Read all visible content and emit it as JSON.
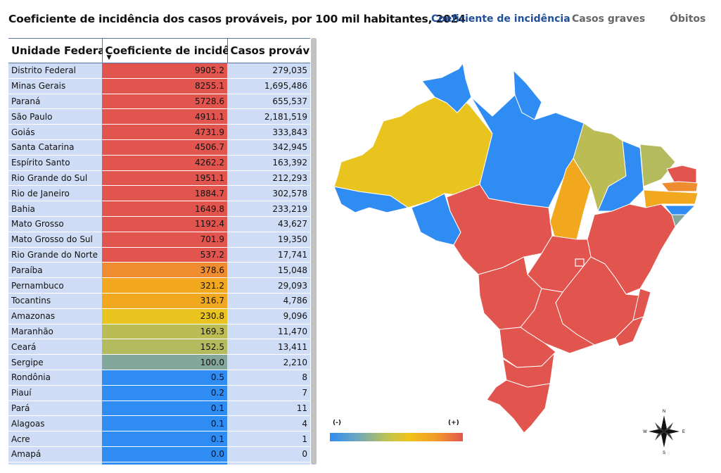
{
  "header": {
    "title": "Coeficiente de incidência dos casos prováveis, por 100 mil habitantes, 2024",
    "tabs": [
      {
        "label": "Coeficiente de incidência",
        "active": true
      },
      {
        "label": "Casos graves",
        "active": false
      },
      {
        "label": "Óbitos",
        "active": false
      }
    ]
  },
  "table": {
    "columns": [
      "Unidade Federada",
      "Coeficiente de incidência",
      "Casos prováveis"
    ],
    "rows": [
      {
        "uf": "Distrito Federal",
        "coef": "9905.2",
        "casos": "279,035",
        "color": "#e2554e"
      },
      {
        "uf": "Minas Gerais",
        "coef": "8255.1",
        "casos": "1,695,486",
        "color": "#e2554e"
      },
      {
        "uf": "Paraná",
        "coef": "5728.6",
        "casos": "655,537",
        "color": "#e2554e"
      },
      {
        "uf": "São Paulo",
        "coef": "4911.1",
        "casos": "2,181,519",
        "color": "#e2554e"
      },
      {
        "uf": "Goiás",
        "coef": "4731.9",
        "casos": "333,843",
        "color": "#e2554e"
      },
      {
        "uf": "Santa Catarina",
        "coef": "4506.7",
        "casos": "342,945",
        "color": "#e2554e"
      },
      {
        "uf": "Espírito Santo",
        "coef": "4262.2",
        "casos": "163,392",
        "color": "#e2554e"
      },
      {
        "uf": "Rio Grande do Sul",
        "coef": "1951.1",
        "casos": "212,293",
        "color": "#e2554e"
      },
      {
        "uf": "Rio de Janeiro",
        "coef": "1884.7",
        "casos": "302,578",
        "color": "#e2554e"
      },
      {
        "uf": "Bahia",
        "coef": "1649.8",
        "casos": "233,219",
        "color": "#e2554e"
      },
      {
        "uf": "Mato Grosso",
        "coef": "1192.4",
        "casos": "43,627",
        "color": "#e2554e"
      },
      {
        "uf": "Mato Grosso do Sul",
        "coef": "701.9",
        "casos": "19,350",
        "color": "#e2554e"
      },
      {
        "uf": "Rio Grande do Norte",
        "coef": "537.2",
        "casos": "17,741",
        "color": "#e2554e"
      },
      {
        "uf": "Paraíba",
        "coef": "378.6",
        "casos": "15,048",
        "color": "#ef8c30"
      },
      {
        "uf": "Pernambuco",
        "coef": "321.2",
        "casos": "29,093",
        "color": "#f2a81e"
      },
      {
        "uf": "Tocantins",
        "coef": "316.7",
        "casos": "4,786",
        "color": "#f2a81e"
      },
      {
        "uf": "Amazonas",
        "coef": "230.8",
        "casos": "9,096",
        "color": "#eac41e"
      },
      {
        "uf": "Maranhão",
        "coef": "169.3",
        "casos": "11,470",
        "color": "#bcbc55"
      },
      {
        "uf": "Ceará",
        "coef": "152.5",
        "casos": "13,411",
        "color": "#b4ba5e"
      },
      {
        "uf": "Sergipe",
        "coef": "100.0",
        "casos": "2,210",
        "color": "#83a79a"
      },
      {
        "uf": "Rondônia",
        "coef": "0.5",
        "casos": "8",
        "color": "#2f8cf2"
      },
      {
        "uf": "Piauí",
        "coef": "0.2",
        "casos": "7",
        "color": "#2f8cf2"
      },
      {
        "uf": "Pará",
        "coef": "0.1",
        "casos": "11",
        "color": "#2f8cf2"
      },
      {
        "uf": "Alagoas",
        "coef": "0.1",
        "casos": "4",
        "color": "#2f8cf2"
      },
      {
        "uf": "Acre",
        "coef": "0.1",
        "casos": "1",
        "color": "#2f8cf2"
      },
      {
        "uf": "Amapá",
        "coef": "0.0",
        "casos": "0",
        "color": "#2f8cf2"
      },
      {
        "uf": "",
        "coef": "",
        "casos": "",
        "color": "#2f8cf2"
      }
    ]
  },
  "legend": {
    "min_label": "(-)",
    "max_label": "(+)"
  },
  "compass": {
    "n": "N",
    "s": "S",
    "e": "E",
    "w": "W"
  },
  "colors": {
    "high": "#e2554e",
    "mid_high": "#ef8c30",
    "mid": "#f2a81e",
    "yellow": "#eac41e",
    "olive": "#bcbc55",
    "teal": "#83a79a",
    "low": "#2f8cf2",
    "tab_active": "#1f4e9c"
  }
}
